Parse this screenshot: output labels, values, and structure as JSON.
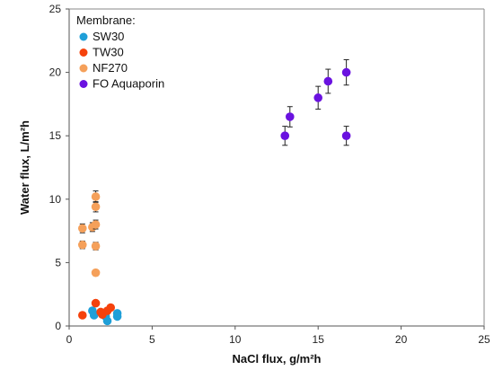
{
  "chart_data": {
    "type": "scatter",
    "xlabel": "NaCl flux, g/m²h",
    "ylabel": "Water flux, L/m²h",
    "xlim": [
      0,
      25
    ],
    "ylim": [
      0,
      25
    ],
    "xticks": [
      "0",
      "5",
      "10",
      "15",
      "20",
      "25"
    ],
    "yticks": [
      "0",
      "5",
      "10",
      "15",
      "20",
      "25"
    ],
    "grid": false,
    "legend": {
      "title": "Membrane:",
      "position": "top-left"
    },
    "series": [
      {
        "name": "SW30",
        "color": "#1f9fd8",
        "points": [
          {
            "x": 1.4,
            "y": 1.2,
            "err": 0.15
          },
          {
            "x": 1.5,
            "y": 0.85,
            "err": 0.15
          },
          {
            "x": 2.2,
            "y": 0.75,
            "err": 0.15
          },
          {
            "x": 2.3,
            "y": 0.4,
            "err": 0.15
          },
          {
            "x": 2.9,
            "y": 1.0,
            "err": 0.15
          },
          {
            "x": 2.9,
            "y": 0.75,
            "err": 0.15
          }
        ]
      },
      {
        "name": "TW30",
        "color": "#f5420c",
        "points": [
          {
            "x": 0.8,
            "y": 0.85,
            "err": 0.15
          },
          {
            "x": 1.6,
            "y": 1.8,
            "err": 0.15
          },
          {
            "x": 1.9,
            "y": 1.1,
            "err": 0.15
          },
          {
            "x": 2.0,
            "y": 0.9,
            "err": 0.15
          },
          {
            "x": 2.3,
            "y": 1.2,
            "err": 0.15
          },
          {
            "x": 2.5,
            "y": 1.45,
            "err": 0.15
          }
        ]
      },
      {
        "name": "NF270",
        "color": "#f5a05a",
        "points": [
          {
            "x": 0.8,
            "y": 7.7,
            "err": 0.35
          },
          {
            "x": 0.8,
            "y": 6.4,
            "err": 0.3
          },
          {
            "x": 1.4,
            "y": 7.8,
            "err": 0.35
          },
          {
            "x": 1.6,
            "y": 10.2,
            "err": 0.45
          },
          {
            "x": 1.6,
            "y": 9.4,
            "err": 0.4
          },
          {
            "x": 1.6,
            "y": 8.0,
            "err": 0.35
          },
          {
            "x": 1.6,
            "y": 6.3,
            "err": 0.3
          },
          {
            "x": 1.6,
            "y": 4.2,
            "err": 0.2
          }
        ]
      },
      {
        "name": "FO Aquaporin",
        "color": "#6a12e0",
        "points": [
          {
            "x": 13.0,
            "y": 15.0,
            "err": 0.75
          },
          {
            "x": 13.3,
            "y": 16.5,
            "err": 0.8
          },
          {
            "x": 15.0,
            "y": 18.0,
            "err": 0.9
          },
          {
            "x": 15.6,
            "y": 19.3,
            "err": 0.95
          },
          {
            "x": 16.7,
            "y": 20.0,
            "err": 1.0
          },
          {
            "x": 16.7,
            "y": 15.0,
            "err": 0.75
          }
        ]
      }
    ]
  }
}
